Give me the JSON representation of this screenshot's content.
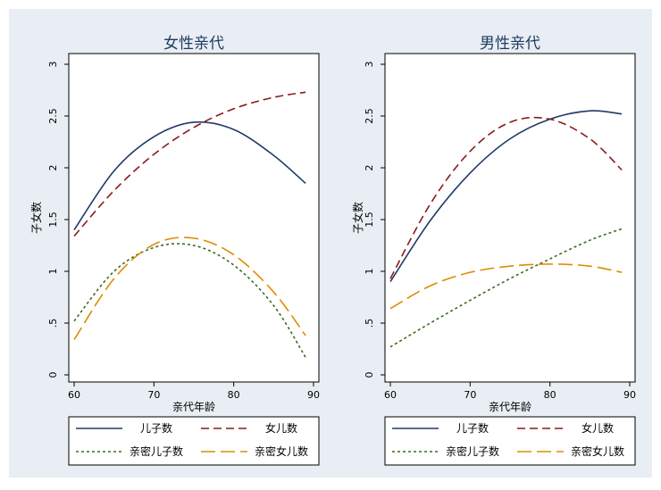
{
  "chart_data": [
    {
      "type": "line",
      "title": "女性亲代",
      "xlabel": "亲代年龄",
      "ylabel": "子女数",
      "xlim": [
        60,
        90
      ],
      "ylim": [
        0,
        3
      ],
      "xticks": [
        "60",
        "70",
        "80",
        "90"
      ],
      "yticks": [
        "0",
        ".5",
        "1",
        "1.5",
        "2",
        "2.5",
        "3"
      ],
      "grid": false,
      "x": [
        60,
        65,
        70,
        75,
        80,
        85,
        89
      ],
      "series": [
        {
          "name": "儿子数",
          "color": "#1f3b66",
          "dash": "solid",
          "values": [
            1.4,
            1.97,
            2.3,
            2.44,
            2.37,
            2.12,
            1.85
          ]
        },
        {
          "name": "女儿数",
          "color": "#8b1a1a",
          "dash": "dashed",
          "values": [
            1.34,
            1.78,
            2.13,
            2.39,
            2.57,
            2.68,
            2.73
          ]
        },
        {
          "name": "亲密儿子数",
          "color": "#3a6b1e",
          "dash": "short-dashed",
          "values": [
            0.52,
            1.0,
            1.23,
            1.25,
            1.06,
            0.67,
            0.17
          ]
        },
        {
          "name": "亲密女儿数",
          "color": "#e08a00",
          "dash": "long-dashed",
          "values": [
            0.34,
            0.93,
            1.26,
            1.32,
            1.16,
            0.8,
            0.38
          ]
        }
      ]
    },
    {
      "type": "line",
      "title": "男性亲代",
      "xlabel": "亲代年龄",
      "ylabel": "子女数",
      "xlim": [
        60,
        90
      ],
      "ylim": [
        0,
        3
      ],
      "xticks": [
        "60",
        "70",
        "80",
        "90"
      ],
      "yticks": [
        "0",
        ".5",
        "1",
        "1.5",
        "2",
        "2.5",
        "3"
      ],
      "grid": false,
      "x": [
        60,
        65,
        70,
        75,
        80,
        85,
        89
      ],
      "series": [
        {
          "name": "儿子数",
          "color": "#1f3b66",
          "dash": "solid",
          "values": [
            0.9,
            1.49,
            1.95,
            2.28,
            2.47,
            2.55,
            2.52
          ]
        },
        {
          "name": "女儿数",
          "color": "#8b1a1a",
          "dash": "dashed",
          "values": [
            0.93,
            1.65,
            2.16,
            2.44,
            2.47,
            2.28,
            1.98
          ]
        },
        {
          "name": "亲密儿子数",
          "color": "#3a6b1e",
          "dash": "short-dashed",
          "values": [
            0.27,
            0.5,
            0.72,
            0.93,
            1.12,
            1.3,
            1.41
          ]
        },
        {
          "name": "亲密女儿数",
          "color": "#e08a00",
          "dash": "long-dashed",
          "values": [
            0.64,
            0.86,
            0.99,
            1.05,
            1.07,
            1.05,
            0.99
          ]
        }
      ]
    }
  ],
  "colors": {
    "outer_bg": "#e8eef4",
    "plot_bg": "#ffffff",
    "title_color": "#1e3a5f",
    "axis_color": "#000000"
  }
}
